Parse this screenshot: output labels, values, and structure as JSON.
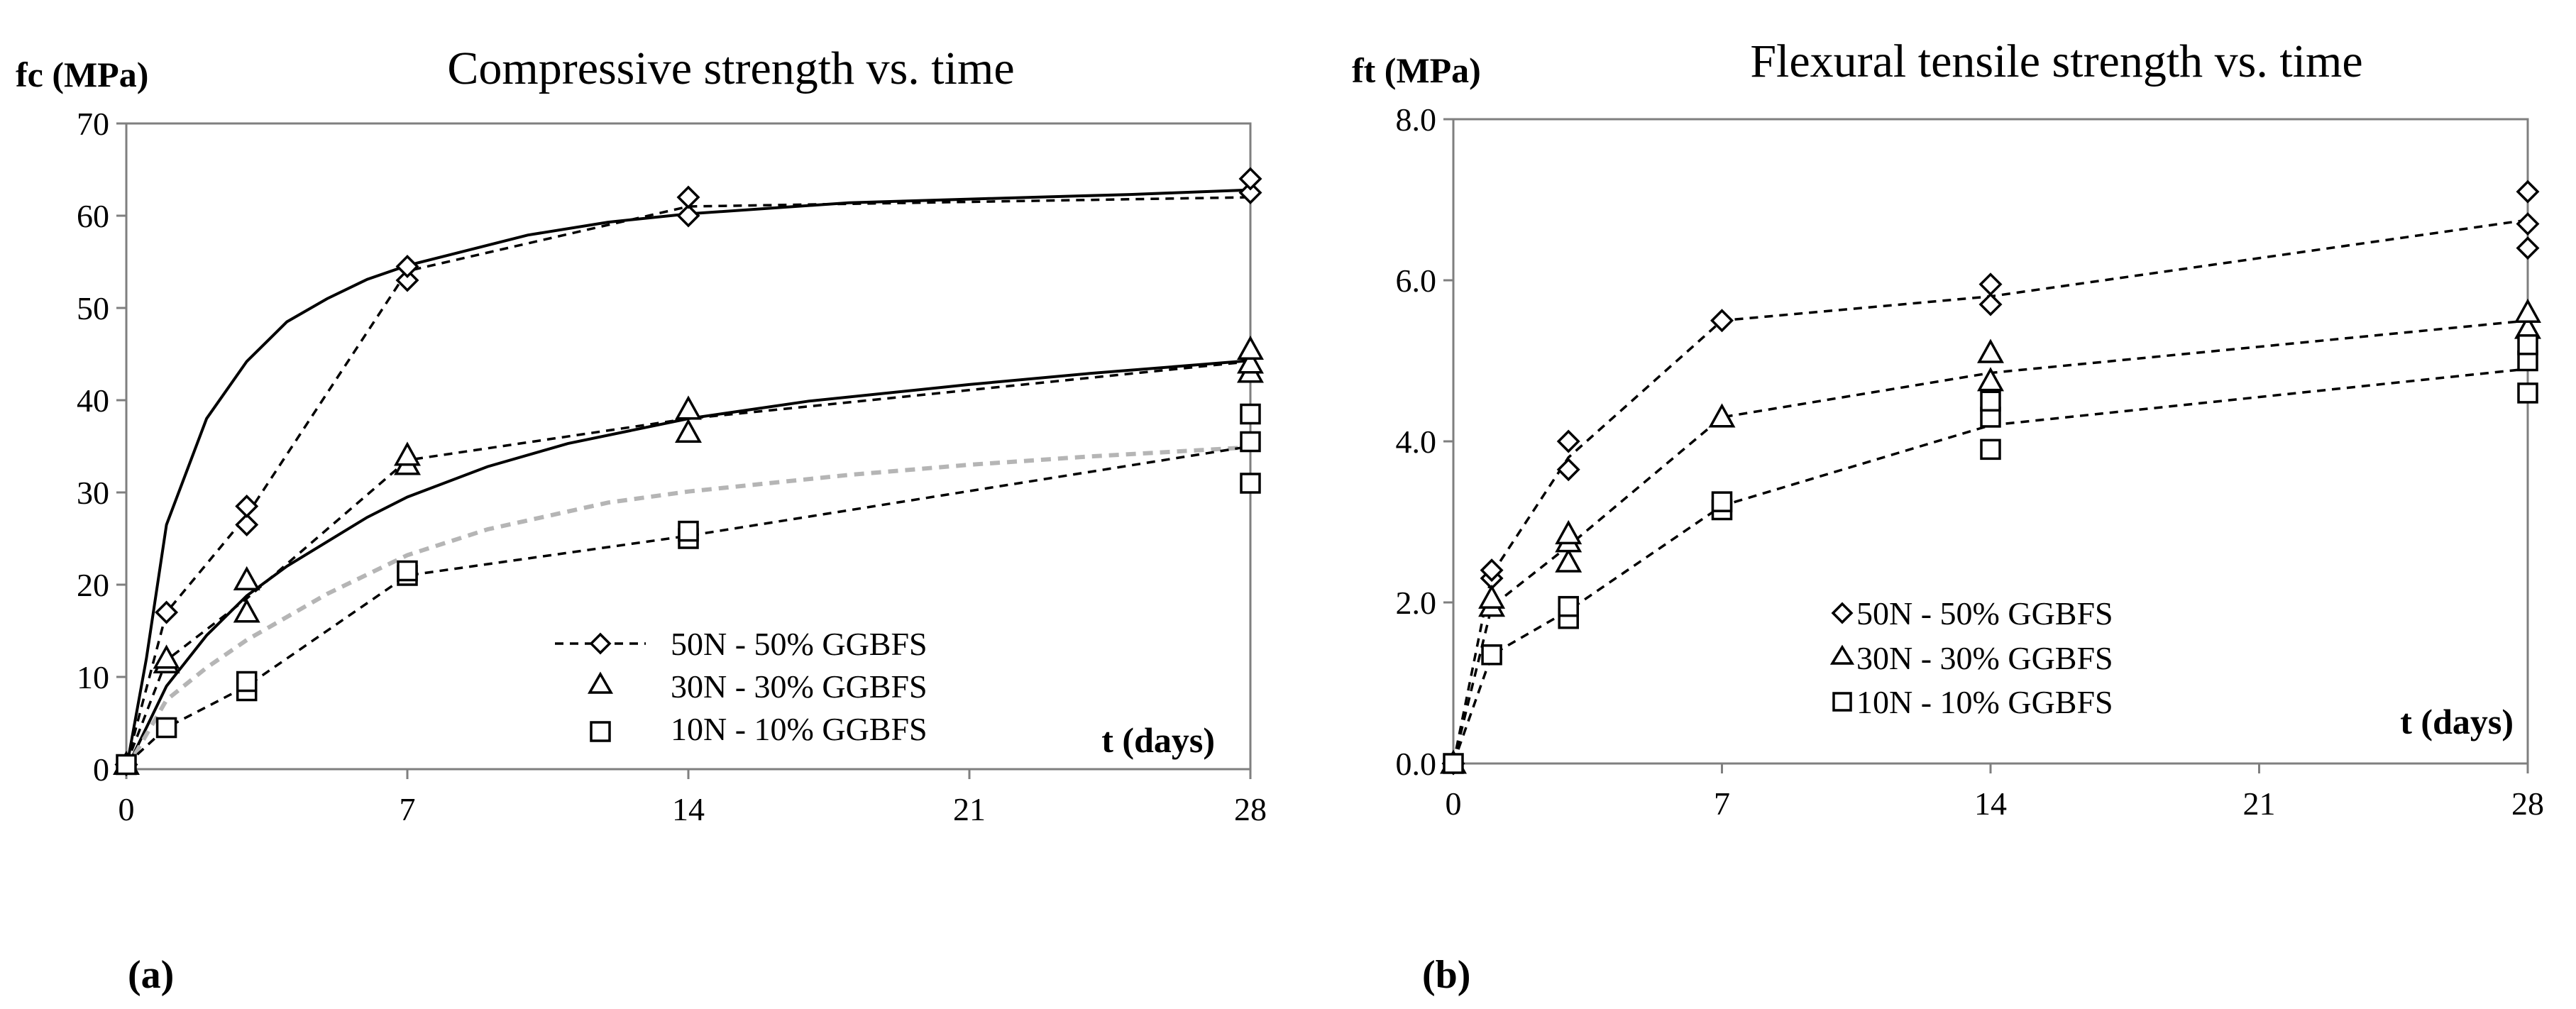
{
  "chart_data": [
    {
      "id": "a",
      "type": "line",
      "panel_label": "(a)",
      "title": "Compressive strength vs. time",
      "ylabel": "fc (MPa)",
      "xlabel": "t  (days)",
      "xlim": [
        0,
        28
      ],
      "ylim": [
        0,
        70
      ],
      "xticks": [
        0,
        7,
        14,
        21,
        28
      ],
      "yticks": [
        0,
        10,
        20,
        30,
        40,
        50,
        60,
        70
      ],
      "ytick_labels": [
        "0",
        "10",
        "20",
        "30",
        "40",
        "50",
        "60",
        "70"
      ],
      "legend": [
        "50N - 50% GGBFS",
        "30N - 30% GGBFS",
        "10N - 10% GGBFS"
      ],
      "series": [
        {
          "name": "50N - 50% GGBFS",
          "marker": "diamond",
          "points": [
            [
              0,
              0.5
            ],
            [
              1,
              17
            ],
            [
              3,
              26.5
            ],
            [
              3,
              28.5
            ],
            [
              7,
              53
            ],
            [
              7,
              54.5
            ],
            [
              14,
              60
            ],
            [
              14,
              62
            ],
            [
              28,
              62.5
            ],
            [
              28,
              64
            ]
          ],
          "mean_line": [
            [
              0,
              0.5
            ],
            [
              1,
              17
            ],
            [
              3,
              27.5
            ],
            [
              7,
              54
            ],
            [
              14,
              61
            ],
            [
              28,
              62
            ]
          ],
          "fit": [
            [
              0,
              0
            ],
            [
              0.5,
              12
            ],
            [
              1,
              26.5
            ],
            [
              2,
              38
            ],
            [
              3,
              44.2
            ],
            [
              4,
              48.5
            ],
            [
              5,
              51
            ],
            [
              6,
              53.1
            ],
            [
              7,
              54.6
            ],
            [
              10,
              57.9
            ],
            [
              12,
              59.3
            ],
            [
              14,
              60.2
            ],
            [
              18,
              61.4
            ],
            [
              21,
              61.8
            ],
            [
              25,
              62.3
            ],
            [
              28,
              62.8
            ]
          ]
        },
        {
          "name": "30N - 30% GGBFS",
          "marker": "triangle",
          "points": [
            [
              0,
              0.5
            ],
            [
              1,
              11.5
            ],
            [
              1,
              12
            ],
            [
              3,
              17
            ],
            [
              3,
              20.5
            ],
            [
              7,
              33
            ],
            [
              7,
              34
            ],
            [
              14,
              36.5
            ],
            [
              14,
              39
            ],
            [
              28,
              43
            ],
            [
              28,
              44
            ],
            [
              28,
              45.5
            ]
          ],
          "mean_line": [
            [
              0,
              0.5
            ],
            [
              1,
              11.8
            ],
            [
              3,
              18.5
            ],
            [
              7,
              33.5
            ],
            [
              14,
              38
            ],
            [
              28,
              44.2
            ]
          ],
          "fit": [
            [
              0,
              0
            ],
            [
              1,
              9
            ],
            [
              2,
              14.5
            ],
            [
              3,
              18.8
            ],
            [
              4,
              22
            ],
            [
              6,
              27.3
            ],
            [
              7,
              29.5
            ],
            [
              9,
              32.8
            ],
            [
              11,
              35.3
            ],
            [
              14,
              38
            ],
            [
              17,
              39.9
            ],
            [
              21,
              41.7
            ],
            [
              24,
              42.9
            ],
            [
              28,
              44.3
            ]
          ]
        },
        {
          "name": "10N - 10% GGBFS",
          "marker": "square",
          "points": [
            [
              0,
              0.5
            ],
            [
              1,
              4.5
            ],
            [
              3,
              8.5
            ],
            [
              3,
              9.5
            ],
            [
              7,
              21
            ],
            [
              7,
              21.5
            ],
            [
              14,
              25
            ],
            [
              14,
              25.8
            ],
            [
              28,
              31
            ],
            [
              28,
              35.5
            ],
            [
              28,
              38.5
            ]
          ],
          "mean_line": [
            [
              0,
              0.5
            ],
            [
              1,
              4.5
            ],
            [
              3,
              9
            ],
            [
              7,
              21
            ],
            [
              14,
              25.3
            ],
            [
              28,
              35
            ]
          ],
          "fit": [
            [
              0,
              0
            ],
            [
              1,
              7.5
            ],
            [
              2,
              11
            ],
            [
              3,
              14
            ],
            [
              5,
              19
            ],
            [
              7,
              23.2
            ],
            [
              9,
              26
            ],
            [
              12,
              28.9
            ],
            [
              14,
              30.1
            ],
            [
              18,
              31.9
            ],
            [
              21,
              33
            ],
            [
              24,
              33.9
            ],
            [
              28,
              34.9
            ]
          ]
        }
      ]
    },
    {
      "id": "b",
      "type": "line",
      "panel_label": "(b)",
      "title": "Flexural tensile strength vs. time",
      "ylabel": "ft (MPa)",
      "xlabel": "t (days)",
      "xlim": [
        0,
        28
      ],
      "ylim": [
        0,
        8
      ],
      "xticks": [
        0,
        7,
        14,
        21,
        28
      ],
      "yticks": [
        0,
        2,
        4,
        6,
        8
      ],
      "ytick_labels": [
        "0.0",
        "2.0",
        "4.0",
        "6.0",
        "8.0"
      ],
      "legend": [
        "50N - 50% GGBFS",
        "30N - 30% GGBFS",
        "10N - 10% GGBFS"
      ],
      "series": [
        {
          "name": "50N - 50% GGBFS",
          "marker": "diamond",
          "points": [
            [
              0,
              0
            ],
            [
              1,
              2.3
            ],
            [
              1,
              2.4
            ],
            [
              3,
              3.65
            ],
            [
              3,
              4.0
            ],
            [
              7,
              5.5
            ],
            [
              14,
              5.7
            ],
            [
              14,
              5.95
            ],
            [
              28,
              6.4
            ],
            [
              28,
              6.7
            ],
            [
              28,
              7.1
            ]
          ],
          "mean_line": [
            [
              0,
              0
            ],
            [
              1,
              2.35
            ],
            [
              3,
              3.8
            ],
            [
              7,
              5.5
            ],
            [
              14,
              5.8
            ],
            [
              28,
              6.75
            ]
          ]
        },
        {
          "name": "30N - 30% GGBFS",
          "marker": "triangle",
          "points": [
            [
              0,
              0
            ],
            [
              1,
              1.95
            ],
            [
              1,
              2.05
            ],
            [
              3,
              2.5
            ],
            [
              3,
              2.75
            ],
            [
              3,
              2.85
            ],
            [
              7,
              4.3
            ],
            [
              14,
              4.75
            ],
            [
              14,
              5.1
            ],
            [
              28,
              5.4
            ],
            [
              28,
              5.6
            ]
          ],
          "mean_line": [
            [
              0,
              0
            ],
            [
              1,
              1.95
            ],
            [
              3,
              2.7
            ],
            [
              7,
              4.3
            ],
            [
              14,
              4.85
            ],
            [
              28,
              5.5
            ]
          ]
        },
        {
          "name": "10N - 10% GGBFS",
          "marker": "square",
          "points": [
            [
              0,
              0
            ],
            [
              1,
              1.35
            ],
            [
              3,
              1.8
            ],
            [
              3,
              1.95
            ],
            [
              7,
              3.15
            ],
            [
              7,
              3.25
            ],
            [
              14,
              3.9
            ],
            [
              14,
              4.3
            ],
            [
              14,
              4.5
            ],
            [
              28,
              4.6
            ],
            [
              28,
              5.0
            ],
            [
              28,
              5.2
            ]
          ],
          "mean_line": [
            [
              0,
              0
            ],
            [
              1,
              1.35
            ],
            [
              3,
              1.9
            ],
            [
              7,
              3.2
            ],
            [
              14,
              4.2
            ],
            [
              28,
              4.9
            ]
          ]
        }
      ]
    }
  ]
}
